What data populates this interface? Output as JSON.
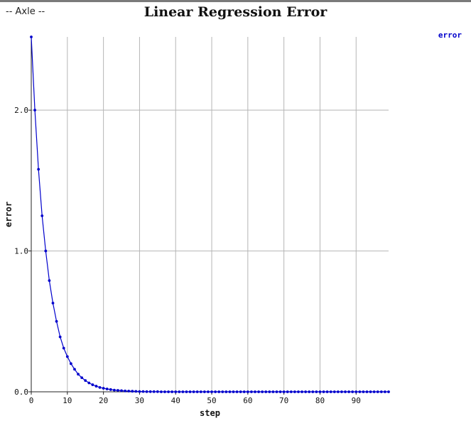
{
  "header": {
    "selector_label": "-- Axle --",
    "title": "Linear Regression Error"
  },
  "colors": {
    "series": "#0000cc",
    "grid": "#b5b5b5",
    "axis": "#222222"
  },
  "chart_data": {
    "type": "line",
    "title": "Linear Regression Error",
    "xlabel": "step",
    "ylabel": "error",
    "xlim": [
      0,
      99
    ],
    "ylim": [
      0,
      2.52
    ],
    "x_ticks": [
      0,
      10,
      20,
      30,
      40,
      50,
      60,
      70,
      80,
      90
    ],
    "x_tick_labels": [
      "0",
      "10",
      "20",
      "30",
      "40",
      "50",
      "60",
      "70",
      "80",
      "90"
    ],
    "y_ticks": [
      0,
      1,
      2
    ],
    "y_tick_labels": [
      "0.0",
      "1.0",
      "2.0"
    ],
    "grid": true,
    "legend_position": "top-right",
    "series": [
      {
        "name": "error",
        "x": [
          0,
          1,
          2,
          3,
          4,
          5,
          6,
          7,
          8,
          9,
          10,
          11,
          12,
          13,
          14,
          15,
          16,
          17,
          18,
          19,
          20,
          21,
          22,
          23,
          24,
          25,
          26,
          27,
          28,
          29,
          30,
          31,
          32,
          33,
          34,
          35,
          36,
          37,
          38,
          39,
          40,
          41,
          42,
          43,
          44,
          45,
          46,
          47,
          48,
          49,
          50,
          51,
          52,
          53,
          54,
          55,
          56,
          57,
          58,
          59,
          60,
          61,
          62,
          63,
          64,
          65,
          66,
          67,
          68,
          69,
          70,
          71,
          72,
          73,
          74,
          75,
          76,
          77,
          78,
          79,
          80,
          81,
          82,
          83,
          84,
          85,
          86,
          87,
          88,
          89,
          90,
          91,
          92,
          93,
          94,
          95,
          96,
          97,
          98,
          99
        ],
        "y": [
          2.52,
          2.0,
          1.58,
          1.25,
          1.0,
          0.79,
          0.63,
          0.5,
          0.39,
          0.31,
          0.25,
          0.2,
          0.16,
          0.125,
          0.1,
          0.08,
          0.063,
          0.05,
          0.04,
          0.031,
          0.025,
          0.02,
          0.016,
          0.012,
          0.01,
          0.008,
          0.006,
          0.005,
          0.004,
          0.003,
          0.002,
          0.002,
          0.001,
          0.001,
          0.001,
          0.001,
          0,
          0,
          0,
          0,
          0,
          0,
          0,
          0,
          0,
          0,
          0,
          0,
          0,
          0,
          0,
          0,
          0,
          0,
          0,
          0,
          0,
          0,
          0,
          0,
          0,
          0,
          0,
          0,
          0,
          0,
          0,
          0,
          0,
          0,
          0,
          0,
          0,
          0,
          0,
          0,
          0,
          0,
          0,
          0,
          0,
          0,
          0,
          0,
          0,
          0,
          0,
          0,
          0,
          0,
          0,
          0,
          0,
          0,
          0,
          0,
          0,
          0,
          0,
          0
        ]
      }
    ]
  }
}
